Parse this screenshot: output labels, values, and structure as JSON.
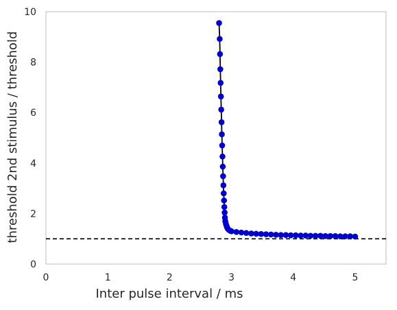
{
  "chart_data": {
    "type": "line",
    "title": "",
    "xlabel": "Inter pulse interval / ms",
    "ylabel": "threshold 2nd stimulus / threshold",
    "xlim": [
      0,
      5.5
    ],
    "ylim": [
      0,
      10
    ],
    "x_ticks": [
      "0",
      "1",
      "2",
      "3",
      "4",
      "5"
    ],
    "y_ticks": [
      "0",
      "2",
      "4",
      "6",
      "8",
      "10"
    ],
    "grid": false,
    "legend": "none",
    "series": [
      {
        "line_color": "#000000",
        "marker_color": "#0000cc",
        "x": [
          2.8,
          2.81,
          2.815,
          2.82,
          2.825,
          2.83,
          2.835,
          2.84,
          2.845,
          2.85,
          2.855,
          2.86,
          2.865,
          2.87,
          2.875,
          2.88,
          2.885,
          2.89,
          2.895,
          2.9,
          2.91,
          2.92,
          2.93,
          2.94,
          2.96,
          2.98,
          3.0,
          3.08,
          3.16,
          3.24,
          3.32,
          3.4,
          3.48,
          3.56,
          3.64,
          3.72,
          3.8,
          3.88,
          3.96,
          4.04,
          4.12,
          4.2,
          4.28,
          4.36,
          4.44,
          4.52,
          4.6,
          4.68,
          4.76,
          4.84,
          4.92,
          5.0
        ],
        "y": [
          9.55,
          8.92,
          8.32,
          7.72,
          7.18,
          6.64,
          6.12,
          5.62,
          5.14,
          4.7,
          4.26,
          3.86,
          3.48,
          3.12,
          2.8,
          2.52,
          2.26,
          2.04,
          1.84,
          1.7,
          1.6,
          1.52,
          1.45,
          1.4,
          1.35,
          1.32,
          1.3,
          1.27,
          1.25,
          1.23,
          1.21,
          1.2,
          1.19,
          1.18,
          1.17,
          1.16,
          1.15,
          1.15,
          1.14,
          1.14,
          1.13,
          1.13,
          1.12,
          1.12,
          1.12,
          1.11,
          1.11,
          1.11,
          1.1,
          1.1,
          1.1,
          1.09
        ]
      }
    ],
    "reference_line": {
      "y": 1,
      "style": "dashed",
      "color": "#000000"
    }
  }
}
